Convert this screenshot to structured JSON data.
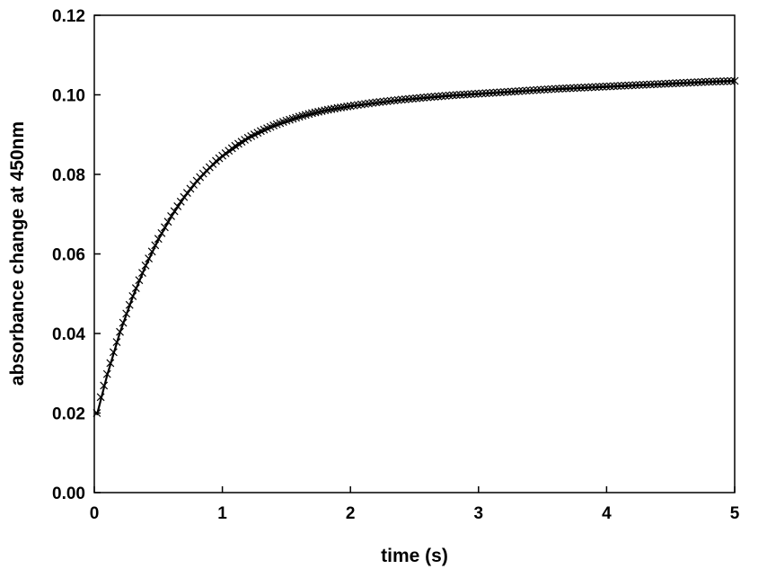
{
  "chart_data": {
    "type": "scatter",
    "title": "",
    "xlabel": "time (s)",
    "ylabel": "absorbance change at 450nm",
    "xlim": [
      0,
      5
    ],
    "ylim": [
      0,
      0.12
    ],
    "xticks": [
      "0",
      "1",
      "2",
      "3",
      "4",
      "5"
    ],
    "yticks": [
      "0.00",
      "0.02",
      "0.04",
      "0.06",
      "0.08",
      "0.10",
      "0.12"
    ],
    "grid": false,
    "legend": "none",
    "series": [
      {
        "kind": "markers",
        "marker": "x",
        "color": "#000000",
        "points": [
          [
            0.02,
            0.02
          ],
          [
            0.05,
            0.024
          ],
          [
            0.1,
            0.0298
          ],
          [
            0.15,
            0.0353
          ],
          [
            0.2,
            0.0404
          ],
          [
            0.25,
            0.045
          ],
          [
            0.3,
            0.0494
          ],
          [
            0.35,
            0.0534
          ],
          [
            0.4,
            0.0571
          ],
          [
            0.45,
            0.0606
          ],
          [
            0.5,
            0.0638
          ],
          [
            0.55,
            0.0667
          ],
          [
            0.6,
            0.0695
          ],
          [
            0.65,
            0.072
          ],
          [
            0.7,
            0.0743
          ],
          [
            0.75,
            0.0764
          ],
          [
            0.8,
            0.0784
          ],
          [
            0.85,
            0.0802
          ],
          [
            0.9,
            0.0818
          ],
          [
            0.95,
            0.0834
          ],
          [
            1.0,
            0.0847
          ],
          [
            1.1,
            0.0872
          ],
          [
            1.2,
            0.0892
          ],
          [
            1.3,
            0.0909
          ],
          [
            1.4,
            0.0923
          ],
          [
            1.5,
            0.0935
          ],
          [
            1.6,
            0.0945
          ],
          [
            1.7,
            0.0954
          ],
          [
            1.8,
            0.0961
          ],
          [
            1.9,
            0.0967
          ],
          [
            2.0,
            0.0972
          ],
          [
            2.2,
            0.0981
          ],
          [
            2.4,
            0.0988
          ],
          [
            2.6,
            0.0994
          ],
          [
            2.8,
            0.0999
          ],
          [
            3.0,
            0.1003
          ],
          [
            3.2,
            0.1007
          ],
          [
            3.4,
            0.1011
          ],
          [
            3.6,
            0.1015
          ],
          [
            3.8,
            0.1018
          ],
          [
            4.0,
            0.1021
          ],
          [
            4.2,
            0.1024
          ],
          [
            4.4,
            0.1027
          ],
          [
            4.6,
            0.103
          ],
          [
            4.8,
            0.1033
          ],
          [
            5.0,
            0.1035
          ]
        ]
      },
      {
        "kind": "line",
        "color": "#000000",
        "points": [
          [
            0.02,
            0.0195
          ],
          [
            0.1,
            0.0295
          ],
          [
            0.2,
            0.0402
          ],
          [
            0.3,
            0.0492
          ],
          [
            0.4,
            0.0569
          ],
          [
            0.5,
            0.0636
          ],
          [
            0.6,
            0.0693
          ],
          [
            0.7,
            0.0741
          ],
          [
            0.8,
            0.0782
          ],
          [
            0.9,
            0.0816
          ],
          [
            1.0,
            0.0845
          ],
          [
            1.2,
            0.089
          ],
          [
            1.4,
            0.0921
          ],
          [
            1.6,
            0.0944
          ],
          [
            1.8,
            0.096
          ],
          [
            2.0,
            0.0971
          ],
          [
            2.4,
            0.0987
          ],
          [
            2.8,
            0.0998
          ],
          [
            3.2,
            0.1006
          ],
          [
            3.6,
            0.1014
          ],
          [
            4.0,
            0.102
          ],
          [
            4.4,
            0.1026
          ],
          [
            4.8,
            0.1032
          ],
          [
            5.0,
            0.1035
          ]
        ]
      }
    ]
  }
}
